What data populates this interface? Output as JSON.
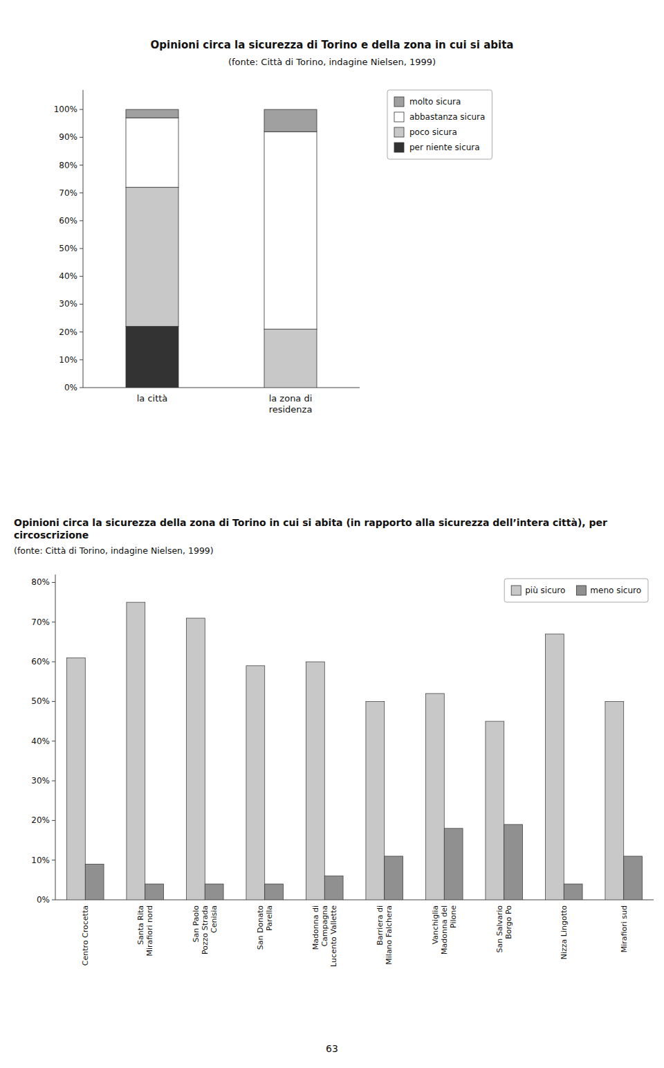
{
  "chart_data": [
    {
      "type": "bar",
      "stacked": true,
      "title": "Opinioni circa la sicurezza di Torino e della zona in cui si abita",
      "subtitle": "(fonte: Città di Torino, indagine Nielsen, 1999)",
      "categories": [
        "la città",
        "la zona di\nresidenza"
      ],
      "series": [
        {
          "name": "per niente sicura",
          "color": "#333333",
          "values": [
            22,
            0
          ]
        },
        {
          "name": "poco sicura",
          "color": "#c8c8c8",
          "values": [
            50,
            21
          ]
        },
        {
          "name": "abbastanza sicura",
          "color": "#ffffff",
          "values": [
            25,
            71
          ]
        },
        {
          "name": "molto sicura",
          "color": "#a0a0a0",
          "values": [
            3,
            8
          ]
        }
      ],
      "ylim": [
        0,
        107
      ],
      "yticks": [
        {
          "value": 0,
          "label": "0%"
        },
        {
          "value": 10,
          "label": "10%"
        },
        {
          "value": 20,
          "label": "20%"
        },
        {
          "value": 30,
          "label": "30%"
        },
        {
          "value": 40,
          "label": "40%"
        },
        {
          "value": 50,
          "label": "50%"
        },
        {
          "value": 60,
          "label": "60%"
        },
        {
          "value": 70,
          "label": "70%"
        },
        {
          "value": 80,
          "label": "80%"
        },
        {
          "value": 90,
          "label": "90%"
        },
        {
          "value": 100,
          "label": "100%"
        }
      ],
      "grid": false,
      "legend": "right"
    },
    {
      "type": "bar",
      "title": "Opinioni circa la sicurezza della zona di Torino in cui si abita (in rapporto alla sicurezza dell’intera città), per circoscrizione",
      "subtitle": "(fonte: Città di Torino, indagine Nielsen, 1999)",
      "categories": [
        "Centro Crocetta",
        "Santa Rita\nMirafiori nord",
        "San Paolo\nPozzo Strada\nCenisia",
        "San Donato\nParella",
        "Madonna di\nCampagna\nLucento Vallette",
        "Barriera di\nMilano Falchera",
        "Vanchiglia\nMadonna del\nPilone",
        "San Salvario\nBorgo Po",
        "Nizza Lingotto",
        "Mirafiori sud"
      ],
      "series": [
        {
          "name": "più sicuro",
          "color": "#c8c8c8",
          "values": [
            61,
            75,
            71,
            59,
            60,
            50,
            52,
            45,
            67,
            50
          ]
        },
        {
          "name": "meno sicuro",
          "color": "#909090",
          "values": [
            9,
            4,
            4,
            4,
            6,
            11,
            18,
            19,
            4,
            11
          ]
        }
      ],
      "ylim": [
        0,
        82
      ],
      "yticks": [
        {
          "value": 0,
          "label": "0%"
        },
        {
          "value": 10,
          "label": "10%"
        },
        {
          "value": 20,
          "label": "20%"
        },
        {
          "value": 30,
          "label": "30%"
        },
        {
          "value": 40,
          "label": "40%"
        },
        {
          "value": 50,
          "label": "50%"
        },
        {
          "value": 60,
          "label": "60%"
        },
        {
          "value": 70,
          "label": "70%"
        },
        {
          "value": 80,
          "label": "80%"
        }
      ],
      "grid": false,
      "legend": "upper right",
      "annotations": [
        "63"
      ]
    }
  ]
}
